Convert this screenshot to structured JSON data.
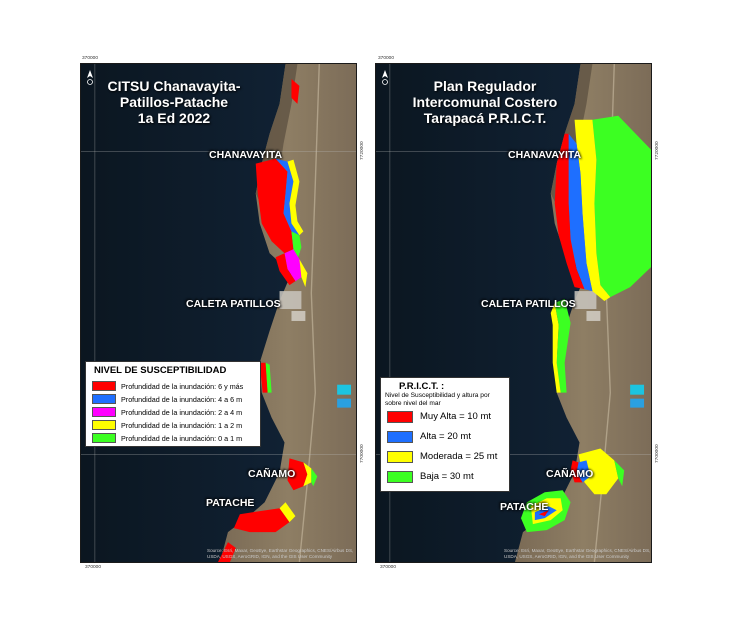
{
  "left": {
    "title_lines": [
      "CITSU Chanavayita-",
      "Patillos-Patache",
      "1a Ed 2022"
    ],
    "places": {
      "chanavayita": "CHANAVAYITA",
      "patillos": "CALETA PATILLOS",
      "canamo": "CAÑAMO",
      "patache": "PATACHE"
    },
    "credit": [
      "Source: Esri, Maxar, GeoEye, Earthstar Geographics, CNES/Airbus DS,",
      "USDA, USGS, AeroGRID, IGN, and the GIS User Community"
    ],
    "coords": {
      "top": "370000",
      "bottom": "370000",
      "right_upper": "7720000",
      "right_lower": "7700000"
    },
    "legend": {
      "title": "NIVEL DE SUSCEPTIBILIDAD",
      "items": [
        {
          "label": "Profundidad de la inundación: 6 y más",
          "color": "#ff0000"
        },
        {
          "label": "Profundidad de la inundación: 4 a 6 m",
          "color": "#1e6fff"
        },
        {
          "label": "Profundidad de la inundación: 2 a 4 m",
          "color": "#ff00ff"
        },
        {
          "label": "Profundidad de la inundación: 1 a 2 m",
          "color": "#ffff00"
        },
        {
          "label": "Profundidad de la inundación: 0 a 1 m",
          "color": "#3cff22"
        }
      ]
    }
  },
  "right": {
    "title_lines": [
      "Plan Regulador",
      "Intercomunal Costero",
      "Tarapacá P.R.I.C.T."
    ],
    "places": {
      "chanavayita": "CHANAVAYITA",
      "patillos": "CALETA PATILLOS",
      "canamo": "CAÑAMO",
      "patache": "PATACHE"
    },
    "credit": [
      "Source: Esri, Maxar, GeoEye, Earthstar Geographics, CNES/Airbus DS,",
      "USDA, USGS, AeroGRID, IGN, and the GIS User Community"
    ],
    "coords": {
      "top": "370000",
      "bottom": "370000",
      "right_upper": "7720000",
      "right_lower": "7700000"
    },
    "legend": {
      "title": "P.R.I.C.T. :",
      "subtitle": "Nivel de Susceptibilidad y altura por sobre nivel del mar",
      "items": [
        {
          "label": "Muy Alta = 10 mt",
          "color": "#ff0000"
        },
        {
          "label": "Alta = 20 mt",
          "color": "#1e6fff"
        },
        {
          "label": "Moderada = 25 mt",
          "color": "#ffff00"
        },
        {
          "label": "Baja = 30 mt",
          "color": "#3cff22"
        }
      ]
    }
  }
}
